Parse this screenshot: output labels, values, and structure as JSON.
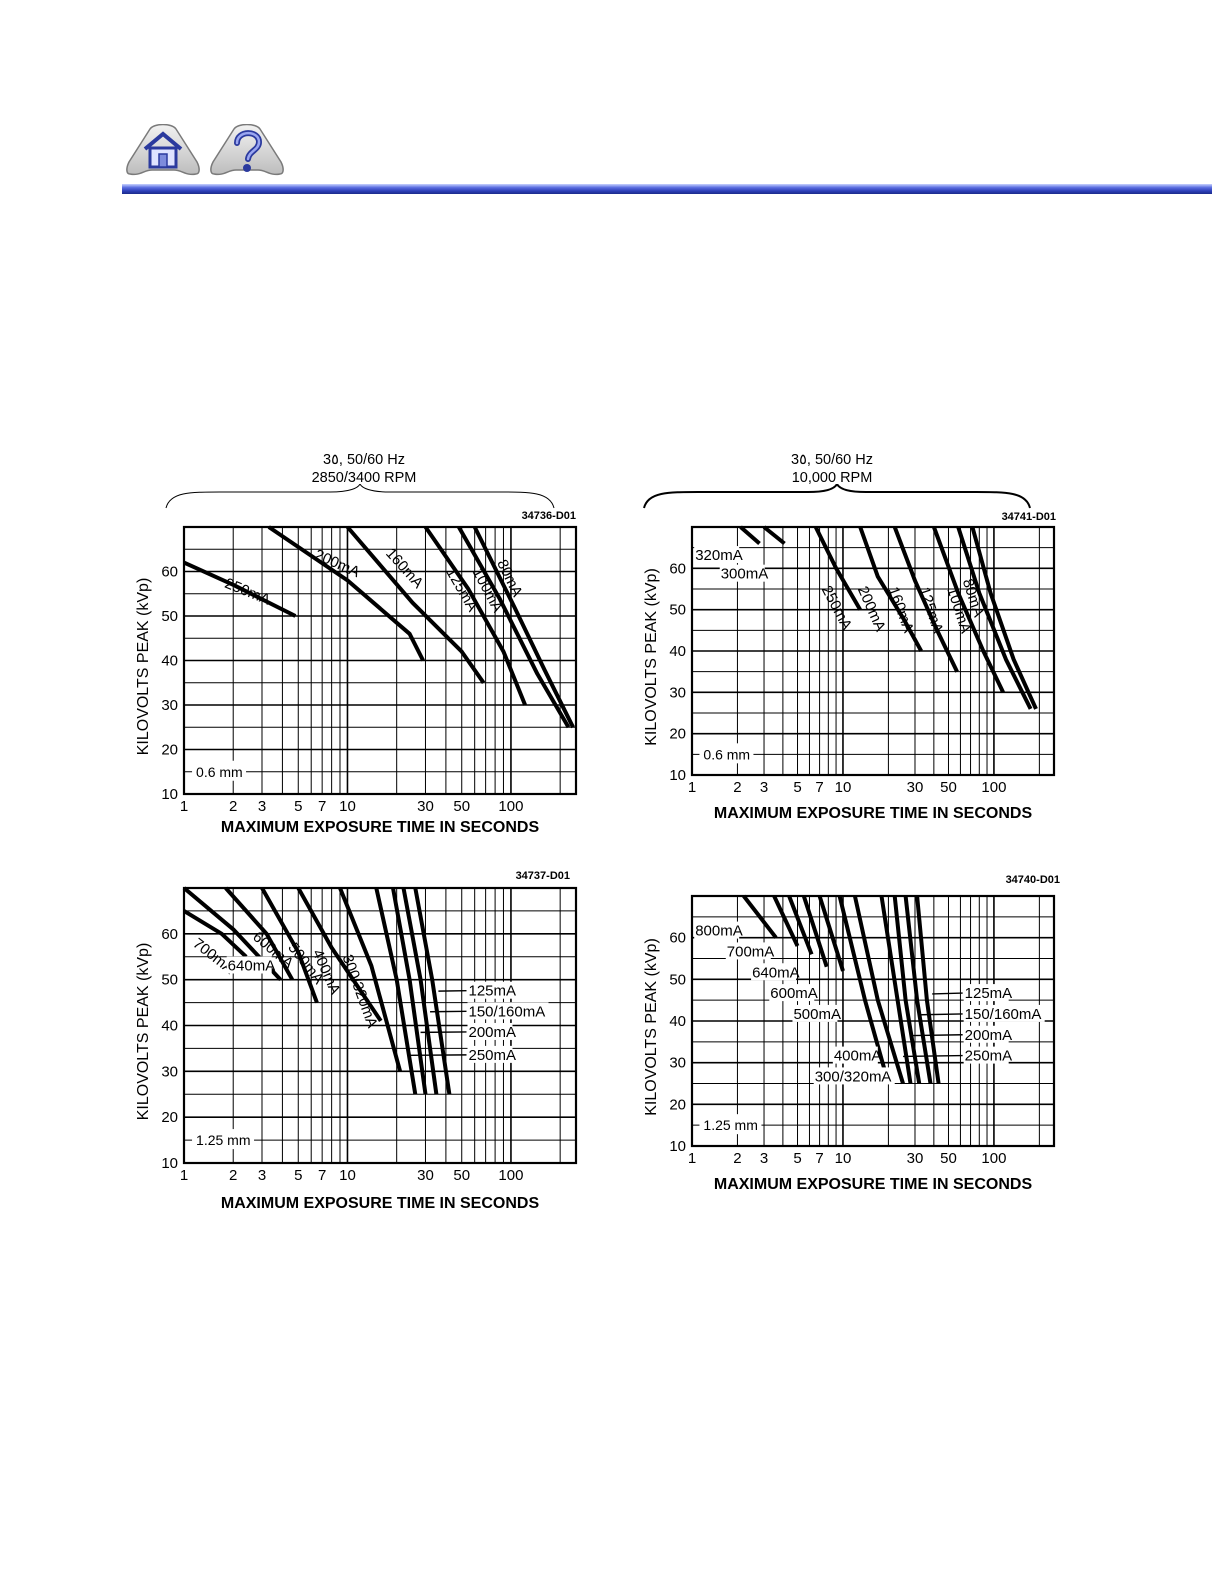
{
  "nav": {
    "home_icon": "home-icon",
    "help_icon": "question-icon",
    "accent": "#2d3fb8"
  },
  "groups": [
    {
      "line1": "3٥, 50/60 Hz",
      "line2": "2850/3400 RPM"
    },
    {
      "line1": "3٥, 50/60 Hz",
      "line2": "10,000 RPM"
    }
  ],
  "chart_data": [
    {
      "type": "line",
      "code": "34736-D01",
      "xlabel": "MAXIMUM EXPOSURE TIME IN SECONDS",
      "ylabel": "KILOVOLTS PEAK (kVp)",
      "x_scale": "log",
      "xlim": [
        1,
        250
      ],
      "ylim": [
        10,
        70
      ],
      "x_ticks": [
        "1",
        "2",
        "3",
        "5",
        "7",
        "10",
        "30",
        "50",
        "100"
      ],
      "y_ticks": [
        "10",
        "20",
        "30",
        "40",
        "50",
        "60"
      ],
      "focal_label": "0.6 mm",
      "series": [
        {
          "name": "250mA",
          "points": [
            [
              1,
              62
            ],
            [
              2,
              57
            ],
            [
              4.8,
              50
            ]
          ]
        },
        {
          "name": "200mA",
          "points": [
            [
              3.3,
              70
            ],
            [
              10,
              58
            ],
            [
              24,
              46
            ],
            [
              29,
              40
            ]
          ]
        },
        {
          "name": "160mA",
          "points": [
            [
              10,
              70
            ],
            [
              25,
              53
            ],
            [
              50,
              42
            ],
            [
              68,
              35
            ]
          ]
        },
        {
          "name": "125mA",
          "points": [
            [
              30,
              70
            ],
            [
              55,
              56
            ],
            [
              90,
              42
            ],
            [
              122,
              30
            ]
          ]
        },
        {
          "name": "100mA",
          "points": [
            [
              48,
              70
            ],
            [
              85,
              54
            ],
            [
              145,
              37
            ],
            [
              225,
              25
            ]
          ]
        },
        {
          "name": "80mA",
          "points": [
            [
              60,
              70
            ],
            [
              105,
              52
            ],
            [
              160,
              38
            ],
            [
              240,
              25
            ]
          ]
        }
      ]
    },
    {
      "type": "line",
      "code": "34741-D01",
      "xlabel": "MAXIMUM EXPOSURE TIME IN SECONDS",
      "ylabel": "KILOVOLTS PEAK (kVp)",
      "x_scale": "log",
      "xlim": [
        1,
        250
      ],
      "ylim": [
        10,
        70
      ],
      "x_ticks": [
        "1",
        "2",
        "3",
        "5",
        "7",
        "10",
        "30",
        "50",
        "100"
      ],
      "y_ticks": [
        "10",
        "20",
        "30",
        "40",
        "50",
        "60"
      ],
      "focal_label": "0.6 mm",
      "series": [
        {
          "name": "320mA",
          "points": [
            [
              2.1,
              70
            ],
            [
              2.8,
              66
            ]
          ]
        },
        {
          "name": "300mA",
          "points": [
            [
              3.0,
              70
            ],
            [
              4.1,
              66
            ]
          ]
        },
        {
          "name": "250mA",
          "points": [
            [
              6.6,
              70
            ],
            [
              9,
              60
            ],
            [
              13,
              50
            ]
          ]
        },
        {
          "name": "200mA",
          "points": [
            [
              13,
              70
            ],
            [
              17,
              58
            ],
            [
              25,
              48
            ],
            [
              33,
              40
            ]
          ]
        },
        {
          "name": "160mA",
          "points": [
            [
              22,
              70
            ],
            [
              30,
              57
            ],
            [
              42,
              45
            ],
            [
              57,
              35
            ]
          ]
        },
        {
          "name": "125mA",
          "points": [
            [
              40,
              70
            ],
            [
              58,
              54
            ],
            [
              85,
              40
            ],
            [
              115,
              30
            ]
          ]
        },
        {
          "name": "100mA",
          "points": [
            [
              58,
              70
            ],
            [
              80,
              54
            ],
            [
              120,
              38
            ],
            [
              175,
              26
            ]
          ]
        },
        {
          "name": "80mA",
          "points": [
            [
              72,
              70
            ],
            [
              95,
              54
            ],
            [
              135,
              38
            ],
            [
              190,
              26
            ]
          ]
        }
      ]
    },
    {
      "type": "line",
      "code": "34737-D01",
      "xlabel": "MAXIMUM EXPOSURE TIME IN SECONDS",
      "ylabel": "KILOVOLTS PEAK (kVp)",
      "x_scale": "log",
      "xlim": [
        1,
        250
      ],
      "ylim": [
        10,
        70
      ],
      "x_ticks": [
        "1",
        "2",
        "3",
        "5",
        "7",
        "10",
        "30",
        "50",
        "100"
      ],
      "y_ticks": [
        "10",
        "20",
        "30",
        "40",
        "50",
        "60"
      ],
      "focal_label": "1.25 mm",
      "series": [
        {
          "name": "700mA",
          "points": [
            [
              1,
              65
            ],
            [
              1.7,
              60
            ],
            [
              2.4,
              55
            ]
          ]
        },
        {
          "name": "640mA",
          "points": [
            [
              1,
              70
            ],
            [
              2,
              61
            ],
            [
              3.9,
              50
            ]
          ]
        },
        {
          "name": "600mA",
          "points": [
            [
              1.8,
              70
            ],
            [
              3.2,
              60
            ],
            [
              4.6,
              50
            ]
          ]
        },
        {
          "name": "500mA",
          "points": [
            [
              3,
              70
            ],
            [
              5,
              56
            ],
            [
              6.5,
              45
            ]
          ]
        },
        {
          "name": "400mA",
          "points": [
            [
              5,
              70
            ],
            [
              8,
              57
            ],
            [
              16,
              41
            ]
          ]
        },
        {
          "name": "300/320mA",
          "points": [
            [
              9,
              70
            ],
            [
              14,
              53
            ],
            [
              21,
              30
            ]
          ]
        },
        {
          "name": "250mA",
          "points": [
            [
              15,
              70
            ],
            [
              20,
              50
            ],
            [
              26,
              25
            ]
          ]
        },
        {
          "name": "200mA",
          "points": [
            [
              19,
              70
            ],
            [
              24,
              50
            ],
            [
              30,
              25
            ]
          ]
        },
        {
          "name": "150/160mA",
          "points": [
            [
              22,
              70
            ],
            [
              28,
              50
            ],
            [
              35,
              25
            ]
          ]
        },
        {
          "name": "125mA",
          "points": [
            [
              26,
              70
            ],
            [
              33,
              50
            ],
            [
              42,
              25
            ]
          ]
        }
      ]
    },
    {
      "type": "line",
      "code": "34740-D01",
      "xlabel": "MAXIMUM EXPOSURE TIME IN SECONDS",
      "ylabel": "KILOVOLTS PEAK (kVp)",
      "x_scale": "log",
      "xlim": [
        1,
        250
      ],
      "ylim": [
        10,
        70
      ],
      "x_ticks": [
        "1",
        "2",
        "3",
        "5",
        "7",
        "10",
        "30",
        "50",
        "100"
      ],
      "y_ticks": [
        "10",
        "20",
        "30",
        "40",
        "50",
        "60"
      ],
      "focal_label": "1.25 mm",
      "series": [
        {
          "name": "800mA",
          "points": [
            [
              2.2,
              70
            ],
            [
              3.6,
              60
            ]
          ]
        },
        {
          "name": "700mA",
          "points": [
            [
              3.5,
              70
            ],
            [
              5,
              58
            ]
          ]
        },
        {
          "name": "640mA",
          "points": [
            [
              4.4,
              70
            ],
            [
              6.2,
              56
            ]
          ]
        },
        {
          "name": "600mA",
          "points": [
            [
              5.5,
              70
            ],
            [
              7.8,
              53
            ]
          ]
        },
        {
          "name": "500mA",
          "points": [
            [
              7,
              70
            ],
            [
              10,
              52
            ]
          ]
        },
        {
          "name": "400mA",
          "points": [
            [
              9.5,
              70
            ],
            [
              14,
              45
            ],
            [
              20,
              25
            ]
          ]
        },
        {
          "name": "300/320mA",
          "points": [
            [
              12,
              70
            ],
            [
              17,
              45
            ],
            [
              25,
              25
            ]
          ]
        },
        {
          "name": "250mA",
          "points": [
            [
              18,
              70
            ],
            [
              23,
              45
            ],
            [
              28,
              25
            ]
          ]
        },
        {
          "name": "200mA",
          "points": [
            [
              22,
              70
            ],
            [
              26,
              45
            ],
            [
              32,
              25
            ]
          ]
        },
        {
          "name": "150/160mA",
          "points": [
            [
              26,
              70
            ],
            [
              31,
              45
            ],
            [
              38,
              25
            ]
          ]
        },
        {
          "name": "125mA",
          "points": [
            [
              31,
              70
            ],
            [
              36,
              45
            ],
            [
              43,
              25
            ]
          ]
        }
      ]
    }
  ]
}
